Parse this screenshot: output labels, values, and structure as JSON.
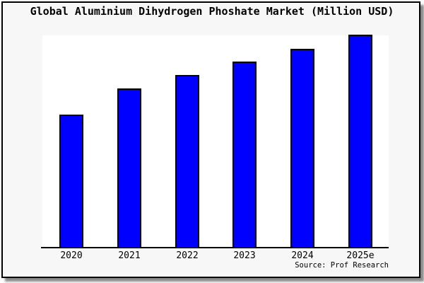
{
  "title": "Global Aluminium Dihydrogen Phoshate Market (Million USD)",
  "source": "Source: Prof Research",
  "colors": {
    "bar_fill": "#0000ff",
    "bar_outline": "#000000",
    "frame_background": "#f7f7f7",
    "plot_background": "#ffffff",
    "frame_border": "#000000",
    "axis": "#000000",
    "text": "#000000"
  },
  "chart_data": {
    "type": "bar",
    "title": "Global Aluminium Dihydrogen Phoshate Market (Million USD)",
    "categories": [
      "2020",
      "2021",
      "2022",
      "2023",
      "2024",
      "2025e"
    ],
    "values": [
      62.6,
      74.8,
      81.1,
      87.4,
      93.4,
      100
    ],
    "value_scale": "relative units, tallest bar = 100 (no y-axis tick labels shown in chart)",
    "xlabel": "",
    "ylabel": "",
    "ylim": [
      0,
      100
    ],
    "grid": false,
    "legend": false,
    "annotations": [
      "Source: Prof Research"
    ]
  }
}
